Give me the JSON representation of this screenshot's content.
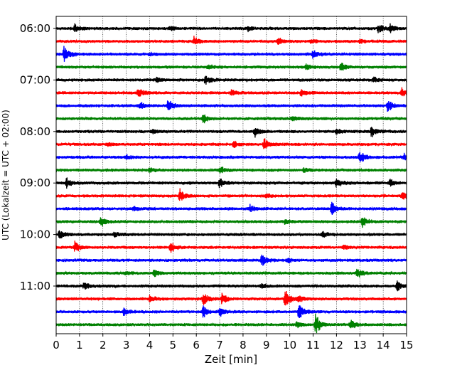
{
  "chart_data": {
    "type": "line",
    "subtype": "seismogram-helicorder",
    "title": "",
    "xlabel": "Zeit  [min]",
    "ylabel": "UTC (Lokalzeit = UTC + 02:00)",
    "xlim": [
      0,
      15
    ],
    "x_ticks": [
      "0",
      "1",
      "2",
      "3",
      "4",
      "5",
      "6",
      "7",
      "8",
      "9",
      "10",
      "11",
      "12",
      "13",
      "14",
      "15"
    ],
    "y_tick_labels": [
      "06:00",
      "07:00",
      "08:00",
      "09:00",
      "10:00",
      "11:00"
    ],
    "vertical_gridlines": true,
    "line_colors": [
      "#000000",
      "#ff0000",
      "#0000ff",
      "#008000"
    ],
    "traces": [
      {
        "start": "06:00",
        "color": "#000000",
        "events": [
          {
            "t": 0.8,
            "amp": 0.4
          },
          {
            "t": 4.9,
            "amp": 0.2
          },
          {
            "t": 8.2,
            "amp": 0.25
          },
          {
            "t": 13.8,
            "amp": 0.45
          },
          {
            "t": 14.3,
            "amp": 0.35
          }
        ]
      },
      {
        "start": "06:15",
        "color": "#ff0000",
        "events": [
          {
            "t": 5.9,
            "amp": 0.4
          },
          {
            "t": 9.5,
            "amp": 0.35
          },
          {
            "t": 10.9,
            "amp": 0.2
          },
          {
            "t": 13.0,
            "amp": 0.2
          }
        ]
      },
      {
        "start": "06:30",
        "color": "#0000ff",
        "events": [
          {
            "t": 0.35,
            "amp": 0.9
          },
          {
            "t": 11.0,
            "amp": 0.45
          },
          {
            "t": 4.0,
            "amp": 0.15
          }
        ]
      },
      {
        "start": "06:45",
        "color": "#008000",
        "events": [
          {
            "t": 12.2,
            "amp": 0.5
          },
          {
            "t": 10.7,
            "amp": 0.25
          },
          {
            "t": 6.5,
            "amp": 0.2
          }
        ]
      },
      {
        "start": "07:00",
        "color": "#000000",
        "events": [
          {
            "t": 6.4,
            "amp": 0.5
          },
          {
            "t": 4.3,
            "amp": 0.2
          },
          {
            "t": 13.6,
            "amp": 0.2
          }
        ]
      },
      {
        "start": "07:15",
        "color": "#ff0000",
        "events": [
          {
            "t": 3.5,
            "amp": 0.45
          },
          {
            "t": 7.5,
            "amp": 0.3
          },
          {
            "t": 10.5,
            "amp": 0.35
          },
          {
            "t": 14.8,
            "amp": 0.4
          }
        ]
      },
      {
        "start": "07:30",
        "color": "#0000ff",
        "events": [
          {
            "t": 4.8,
            "amp": 0.65
          },
          {
            "t": 3.6,
            "amp": 0.3
          },
          {
            "t": 14.2,
            "amp": 0.5
          }
        ]
      },
      {
        "start": "07:45",
        "color": "#008000",
        "events": [
          {
            "t": 6.3,
            "amp": 0.4
          },
          {
            "t": 10.1,
            "amp": 0.2
          }
        ]
      },
      {
        "start": "08:00",
        "color": "#000000",
        "events": [
          {
            "t": 8.5,
            "amp": 0.45
          },
          {
            "t": 13.5,
            "amp": 0.5
          },
          {
            "t": 12.0,
            "amp": 0.3
          },
          {
            "t": 4.1,
            "amp": 0.2
          }
        ]
      },
      {
        "start": "08:15",
        "color": "#ff0000",
        "events": [
          {
            "t": 8.9,
            "amp": 0.55
          },
          {
            "t": 7.6,
            "amp": 0.3
          },
          {
            "t": 2.2,
            "amp": 0.15
          }
        ]
      },
      {
        "start": "08:30",
        "color": "#0000ff",
        "events": [
          {
            "t": 13.0,
            "amp": 0.6
          },
          {
            "t": 3.0,
            "amp": 0.2
          },
          {
            "t": 14.9,
            "amp": 0.3
          }
        ]
      },
      {
        "start": "08:45",
        "color": "#008000",
        "events": [
          {
            "t": 7.0,
            "amp": 0.35
          },
          {
            "t": 4.0,
            "amp": 0.25
          },
          {
            "t": 10.6,
            "amp": 0.2
          }
        ]
      },
      {
        "start": "09:00",
        "color": "#000000",
        "events": [
          {
            "t": 0.45,
            "amp": 0.45
          },
          {
            "t": 7.0,
            "amp": 0.45
          },
          {
            "t": 12.0,
            "amp": 0.45
          },
          {
            "t": 14.3,
            "amp": 0.3
          }
        ]
      },
      {
        "start": "09:15",
        "color": "#ff0000",
        "events": [
          {
            "t": 5.3,
            "amp": 0.55
          },
          {
            "t": 14.8,
            "amp": 0.4
          },
          {
            "t": 9.0,
            "amp": 0.2
          }
        ]
      },
      {
        "start": "09:30",
        "color": "#0000ff",
        "events": [
          {
            "t": 11.8,
            "amp": 0.6
          },
          {
            "t": 8.3,
            "amp": 0.35
          },
          {
            "t": 3.3,
            "amp": 0.25
          }
        ]
      },
      {
        "start": "09:45",
        "color": "#008000",
        "events": [
          {
            "t": 1.9,
            "amp": 0.5
          },
          {
            "t": 13.1,
            "amp": 0.5
          },
          {
            "t": 9.8,
            "amp": 0.2
          }
        ]
      },
      {
        "start": "10:00",
        "color": "#000000",
        "events": [
          {
            "t": 0.15,
            "amp": 0.45
          },
          {
            "t": 11.4,
            "amp": 0.3
          },
          {
            "t": 2.5,
            "amp": 0.2
          }
        ]
      },
      {
        "start": "10:15",
        "color": "#ff0000",
        "events": [
          {
            "t": 0.8,
            "amp": 0.55
          },
          {
            "t": 4.9,
            "amp": 0.55
          },
          {
            "t": 12.3,
            "amp": 0.2
          }
        ]
      },
      {
        "start": "10:30",
        "color": "#0000ff",
        "events": [
          {
            "t": 8.8,
            "amp": 0.7
          },
          {
            "t": 9.9,
            "amp": 0.2
          }
        ]
      },
      {
        "start": "10:45",
        "color": "#008000",
        "events": [
          {
            "t": 12.9,
            "amp": 0.5
          },
          {
            "t": 4.2,
            "amp": 0.3
          },
          {
            "t": 3.0,
            "amp": 0.15
          }
        ]
      },
      {
        "start": "11:00",
        "color": "#000000",
        "events": [
          {
            "t": 1.2,
            "amp": 0.35
          },
          {
            "t": 14.6,
            "amp": 0.4
          },
          {
            "t": 8.8,
            "amp": 0.2
          }
        ]
      },
      {
        "start": "11:15",
        "color": "#ff0000",
        "events": [
          {
            "t": 9.8,
            "amp": 0.95
          },
          {
            "t": 6.3,
            "amp": 0.55
          },
          {
            "t": 7.1,
            "amp": 0.5
          },
          {
            "t": 4.0,
            "amp": 0.35
          },
          {
            "t": 10.4,
            "amp": 0.3
          }
        ]
      },
      {
        "start": "11:30",
        "color": "#0000ff",
        "events": [
          {
            "t": 10.4,
            "amp": 0.8
          },
          {
            "t": 6.3,
            "amp": 0.55
          },
          {
            "t": 7.0,
            "amp": 0.45
          },
          {
            "t": 2.9,
            "amp": 0.35
          }
        ]
      },
      {
        "start": "11:45",
        "color": "#008000",
        "events": [
          {
            "t": 11.1,
            "amp": 0.95
          },
          {
            "t": 12.6,
            "amp": 0.5
          },
          {
            "t": 10.3,
            "amp": 0.25
          }
        ]
      }
    ]
  }
}
